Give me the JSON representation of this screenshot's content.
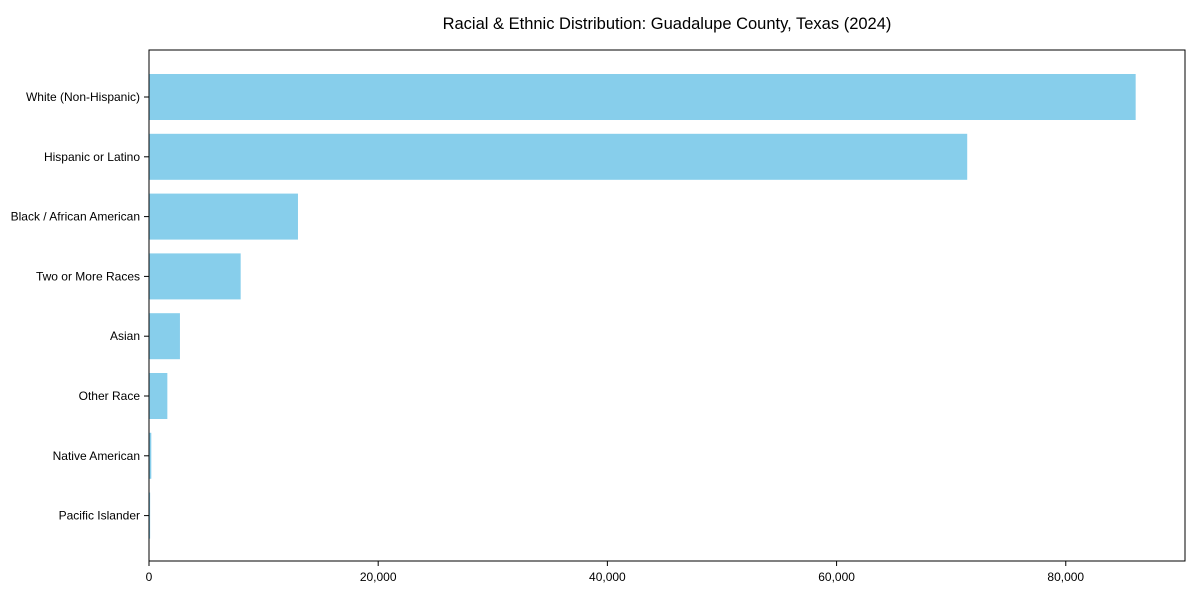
{
  "figure": {
    "background_color": "#ffffff",
    "text_color": "#000000"
  },
  "chart_data": {
    "type": "bar",
    "orientation": "horizontal",
    "title": "Racial & Ethnic Distribution: Guadalupe County, Texas (2024)",
    "xlabel": "",
    "ylabel": "",
    "categories": [
      "White (Non-Hispanic)",
      "Hispanic or Latino",
      "Black / African American",
      "Two or More Races",
      "Asian",
      "Other Race",
      "Native American",
      "Pacific Islander"
    ],
    "values": [
      86100,
      71400,
      13000,
      8000,
      2700,
      1600,
      200,
      100
    ],
    "bar_color": "#87CEEB",
    "xlim": [
      0,
      90405
    ],
    "xticks": [
      {
        "value": 0,
        "label": "0"
      },
      {
        "value": 20000,
        "label": "20,000"
      },
      {
        "value": 40000,
        "label": "40,000"
      },
      {
        "value": 60000,
        "label": "60,000"
      },
      {
        "value": 80000,
        "label": "80,000"
      }
    ],
    "grid": false,
    "frame": true,
    "legend_position": "none"
  }
}
